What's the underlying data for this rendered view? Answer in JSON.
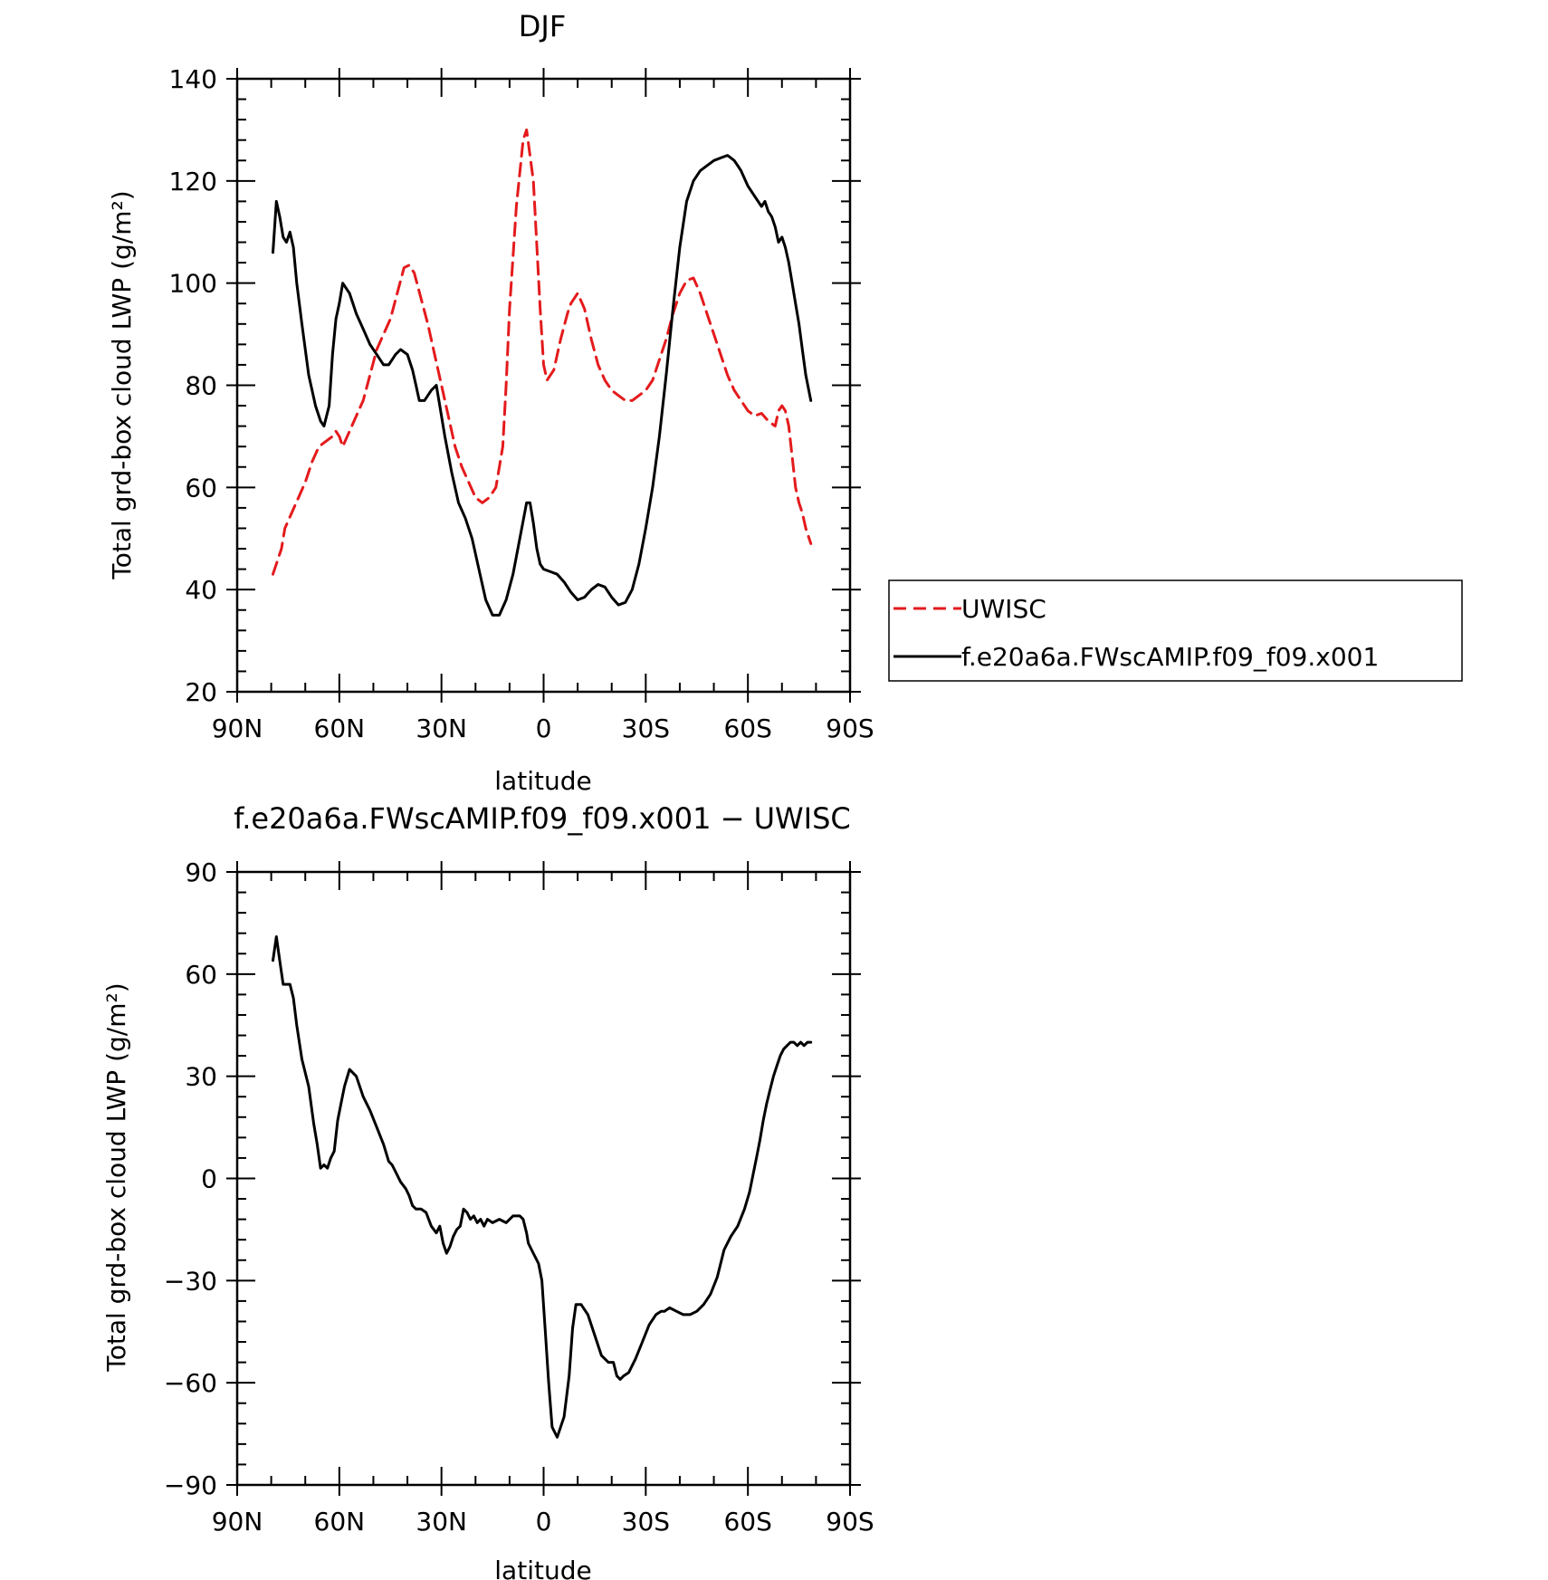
{
  "chart_data": [
    {
      "type": "line",
      "title": "DJF",
      "xlabel": "latitude",
      "ylabel": "Total grd-box cloud LWP (g/m²)",
      "xlim": [
        90,
        -90
      ],
      "ylim": [
        20,
        140
      ],
      "x_axis_note": "positive = N, negative = S",
      "xtick_values": [
        90,
        60,
        30,
        0,
        -30,
        -60,
        -90
      ],
      "xtick_labels": [
        "90N",
        "60N",
        "30N",
        "0",
        "30S",
        "60S",
        "90S"
      ],
      "ytick_values": [
        20,
        40,
        60,
        80,
        100,
        120,
        140
      ],
      "ytick_labels": [
        "20",
        "40",
        "60",
        "80",
        "100",
        "120",
        "140"
      ],
      "legend_position": "right",
      "series": [
        {
          "name": "UWISC",
          "color": "#e41a1c",
          "dash": "dashed",
          "x": [
            79.5,
            77,
            76,
            74,
            72,
            70,
            68,
            66,
            64,
            62,
            61,
            60,
            59,
            57,
            55,
            53,
            51,
            49,
            47,
            45,
            43,
            41,
            39.5,
            38,
            36,
            34,
            32,
            30,
            28,
            26,
            24,
            22,
            20,
            18,
            16,
            14,
            12,
            11,
            10,
            8,
            6,
            5,
            3,
            1,
            0,
            -1,
            -3,
            -5,
            -7,
            -8,
            -10,
            -12,
            -14,
            -16,
            -18,
            -20,
            -22,
            -24,
            -26,
            -28,
            -30,
            -32,
            -34,
            -36,
            -38,
            -40,
            -42,
            -44,
            -46,
            -48,
            -50,
            -52,
            -54,
            -56,
            -58,
            -60,
            -62,
            -64,
            -66,
            -68,
            -69,
            -70,
            -71,
            -72,
            -73,
            -74,
            -75,
            -76,
            -77,
            -78.5
          ],
          "y": [
            43,
            48,
            52,
            55,
            58,
            61,
            65,
            68,
            69,
            70,
            71,
            70,
            68,
            71,
            74,
            77,
            82,
            87,
            90,
            93,
            98,
            103,
            103.5,
            102,
            97,
            92,
            86,
            80,
            74,
            68,
            64,
            61,
            58,
            57,
            58,
            60,
            68,
            80,
            95,
            115,
            128,
            130,
            120,
            95,
            84,
            81,
            83,
            89,
            94,
            96,
            98,
            95,
            89,
            84,
            81,
            79,
            78,
            77,
            77,
            78,
            79,
            81,
            85,
            89,
            94,
            98,
            100.5,
            101,
            98,
            94,
            90,
            86,
            82,
            79,
            77,
            75,
            74,
            74.5,
            73,
            72,
            75,
            76,
            75,
            72,
            66,
            60,
            57,
            55,
            52,
            49
          ]
        },
        {
          "name": "f.e20a6a.FWscAMIP.f09_f09.x001",
          "color": "#000000",
          "dash": "solid",
          "x": [
            79.5,
            78.5,
            77.5,
            76.5,
            75.5,
            74.5,
            73.5,
            72.5,
            71,
            69,
            67,
            65.5,
            64.5,
            63,
            62,
            61,
            60,
            59,
            57,
            55,
            53,
            51,
            49,
            47,
            45.5,
            44.5,
            43.5,
            42,
            40,
            38.5,
            37.5,
            36.5,
            35,
            33,
            31.5,
            30.5,
            29,
            27,
            25,
            23,
            21,
            19,
            17,
            15,
            13,
            11,
            9,
            7,
            5,
            4,
            3,
            2,
            1,
            0,
            -2,
            -4,
            -6,
            -8,
            -10,
            -12,
            -14,
            -16,
            -18,
            -20,
            -22,
            -24,
            -26,
            -28,
            -30,
            -32,
            -34,
            -36,
            -38,
            -40,
            -42,
            -44,
            -46,
            -48,
            -50,
            -52,
            -54,
            -55,
            -56,
            -57,
            -58,
            -60,
            -62,
            -64,
            -65,
            -66,
            -67,
            -68,
            -69,
            -70,
            -71,
            -72,
            -73,
            -74,
            -75,
            -76,
            -77,
            -78.5
          ],
          "y": [
            106,
            116,
            113,
            109,
            108,
            110,
            107,
            100,
            92,
            82,
            76,
            73,
            72,
            76,
            86,
            93,
            96,
            100,
            98,
            94,
            91,
            88,
            86,
            84,
            84,
            85,
            86,
            87,
            86,
            83,
            80,
            77,
            77,
            79,
            80,
            76,
            70,
            63,
            57,
            54,
            50,
            44,
            38,
            35,
            35,
            38,
            43,
            50,
            57,
            57,
            53,
            48,
            45,
            44,
            43.5,
            43,
            41.5,
            39.5,
            38,
            38.5,
            40,
            41,
            40.5,
            38.5,
            37,
            37.5,
            40,
            45,
            52,
            60,
            70,
            82,
            95,
            107,
            116,
            120,
            122,
            123,
            124,
            124.5,
            125,
            124.5,
            124,
            123,
            122,
            119,
            117,
            115,
            116,
            114,
            113,
            111,
            108,
            109,
            107,
            104,
            100,
            96,
            92,
            87,
            82,
            77
          ]
        }
      ]
    },
    {
      "type": "line",
      "title": "f.e20a6a.FWscAMIP.f09_f09.x001 − UWISC",
      "xlabel": "latitude",
      "ylabel": "Total grd-box cloud LWP (g/m²)",
      "xlim": [
        90,
        -90
      ],
      "ylim": [
        -90,
        90
      ],
      "x_axis_note": "positive = N, negative = S",
      "xtick_values": [
        90,
        60,
        30,
        0,
        -30,
        -60,
        -90
      ],
      "xtick_labels": [
        "90N",
        "60N",
        "30N",
        "0",
        "30S",
        "60S",
        "90S"
      ],
      "ytick_values": [
        90,
        60,
        30,
        0,
        -30,
        -60,
        -90
      ],
      "ytick_labels": [
        "90",
        "60",
        "30",
        "0",
        "−30",
        "−60",
        "−90"
      ],
      "series": [
        {
          "color": "#000000",
          "dash": "solid",
          "x": [
            79.5,
            78.5,
            77.5,
            76.5,
            75.5,
            74.5,
            73.5,
            72.5,
            71,
            69,
            67.5,
            66.5,
            65.5,
            64.5,
            63.5,
            62.5,
            61.5,
            60.5,
            59.5,
            58.5,
            57,
            55,
            53,
            51,
            49,
            47,
            45.5,
            44.5,
            43.5,
            42,
            40.5,
            39.5,
            38.5,
            37.5,
            36,
            34.5,
            33,
            31.5,
            30.5,
            29.5,
            28.5,
            27.5,
            26.5,
            25.5,
            24.5,
            23.5,
            22.5,
            21.5,
            20.5,
            19.5,
            18.5,
            17.5,
            16.5,
            15,
            13,
            11,
            9,
            7,
            6,
            5,
            4.5,
            3.5,
            2.5,
            1.5,
            0.5,
            -0.5,
            -1.5,
            -2.5,
            -4,
            -6,
            -7.5,
            -8.5,
            -9.5,
            -11,
            -13,
            -15,
            -17,
            -19,
            -20.5,
            -21.5,
            -22.5,
            -23.5,
            -25,
            -27,
            -29,
            -31,
            -33,
            -34.5,
            -35.5,
            -37,
            -39,
            -41,
            -43,
            -45,
            -47,
            -49,
            -51,
            -53,
            -55,
            -57,
            -59,
            -60.5,
            -61.5,
            -62.5,
            -63.5,
            -64.5,
            -65.5,
            -66.5,
            -67.5,
            -68.5,
            -69.5,
            -70.5,
            -71.5,
            -72.5,
            -73.5,
            -74.5,
            -75.5,
            -76.5,
            -77.5,
            -78.5
          ],
          "y": [
            64,
            71,
            64,
            57,
            57,
            57,
            53,
            45,
            35,
            27,
            16,
            10,
            3,
            4,
            3,
            6,
            8,
            17,
            22,
            27,
            32,
            30,
            24,
            20,
            15,
            10,
            5,
            4,
            2,
            -1,
            -3,
            -5,
            -8,
            -9,
            -9,
            -10,
            -14,
            -16,
            -14,
            -19,
            -22,
            -20,
            -17,
            -15,
            -14,
            -9,
            -10,
            -12,
            -11,
            -13,
            -12,
            -14,
            -12,
            -13,
            -12,
            -13,
            -11,
            -11,
            -12,
            -16,
            -19,
            -21,
            -23,
            -25,
            -30,
            -45,
            -60,
            -73,
            -76,
            -70,
            -58,
            -44,
            -37,
            -37,
            -40,
            -46,
            -52,
            -54,
            -54,
            -58,
            -59,
            -58,
            -57,
            -53,
            -48,
            -43,
            -40,
            -39,
            -39,
            -38,
            -39,
            -40,
            -40,
            -39,
            -37,
            -34,
            -29,
            -21,
            -17,
            -14,
            -9,
            -4,
            1,
            6,
            11,
            17,
            22,
            26,
            30,
            33,
            36,
            38,
            39,
            40,
            40,
            39,
            40,
            39,
            40,
            40
          ]
        }
      ]
    }
  ]
}
